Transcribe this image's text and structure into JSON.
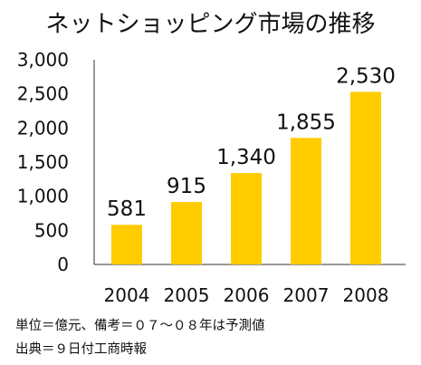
{
  "chart_data": {
    "type": "bar",
    "title": "ネットショッピング市場の推移",
    "categories": [
      "2004",
      "2005",
      "2006",
      "2007",
      "2008"
    ],
    "values": [
      581,
      915,
      1340,
      1855,
      2530
    ],
    "value_labels": [
      "581",
      "915",
      "1,340",
      "1,855",
      "2,530"
    ],
    "ylim": [
      0,
      3000
    ],
    "yticks": [
      "0",
      "500",
      "1,000",
      "1,500",
      "2,000",
      "2,500",
      "3,000"
    ],
    "grid": false,
    "bar_color": "#FFCC00"
  },
  "notes": {
    "unit": "単位＝億元、備考＝０７～０８年は予測値",
    "source": "出典＝９日付工商時報"
  }
}
